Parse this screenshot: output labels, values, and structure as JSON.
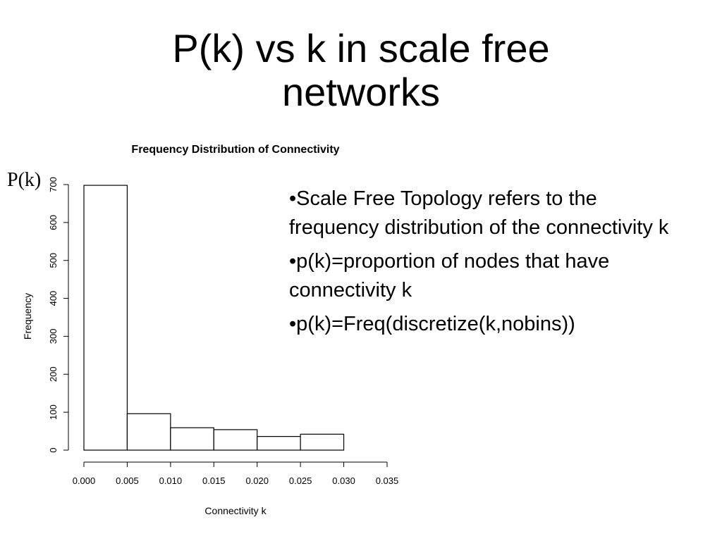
{
  "slide": {
    "title_lines": [
      "P(k) vs k in scale free",
      "networks"
    ],
    "pk_label": "P(k)",
    "bullets": [
      "•Scale Free Topology refers to the frequency distribution of the connectivity k",
      "•p(k)=proportion of nodes that have connectivity k",
      "•p(k)=Freq(discretize(k,nobins))"
    ]
  },
  "chart_data": {
    "type": "bar",
    "title": "Frequency Distribution of Connectivity",
    "xlabel": "Connectivity k",
    "ylabel": "Frequency",
    "bins": [
      {
        "start": 0.0,
        "end": 0.005,
        "value": 698
      },
      {
        "start": 0.005,
        "end": 0.01,
        "value": 96
      },
      {
        "start": 0.01,
        "end": 0.015,
        "value": 59
      },
      {
        "start": 0.015,
        "end": 0.02,
        "value": 54
      },
      {
        "start": 0.02,
        "end": 0.025,
        "value": 36
      },
      {
        "start": 0.025,
        "end": 0.03,
        "value": 42
      }
    ],
    "xlim": [
      0.0,
      0.035
    ],
    "ylim": [
      0,
      700
    ],
    "xticks": [
      "0.000",
      "0.005",
      "0.010",
      "0.015",
      "0.020",
      "0.025",
      "0.030",
      "0.035"
    ],
    "yticks": [
      "0",
      "100",
      "200",
      "300",
      "400",
      "500",
      "600",
      "700"
    ],
    "grid": false,
    "bar_fill": "#ffffff",
    "bar_stroke": "#000000"
  }
}
